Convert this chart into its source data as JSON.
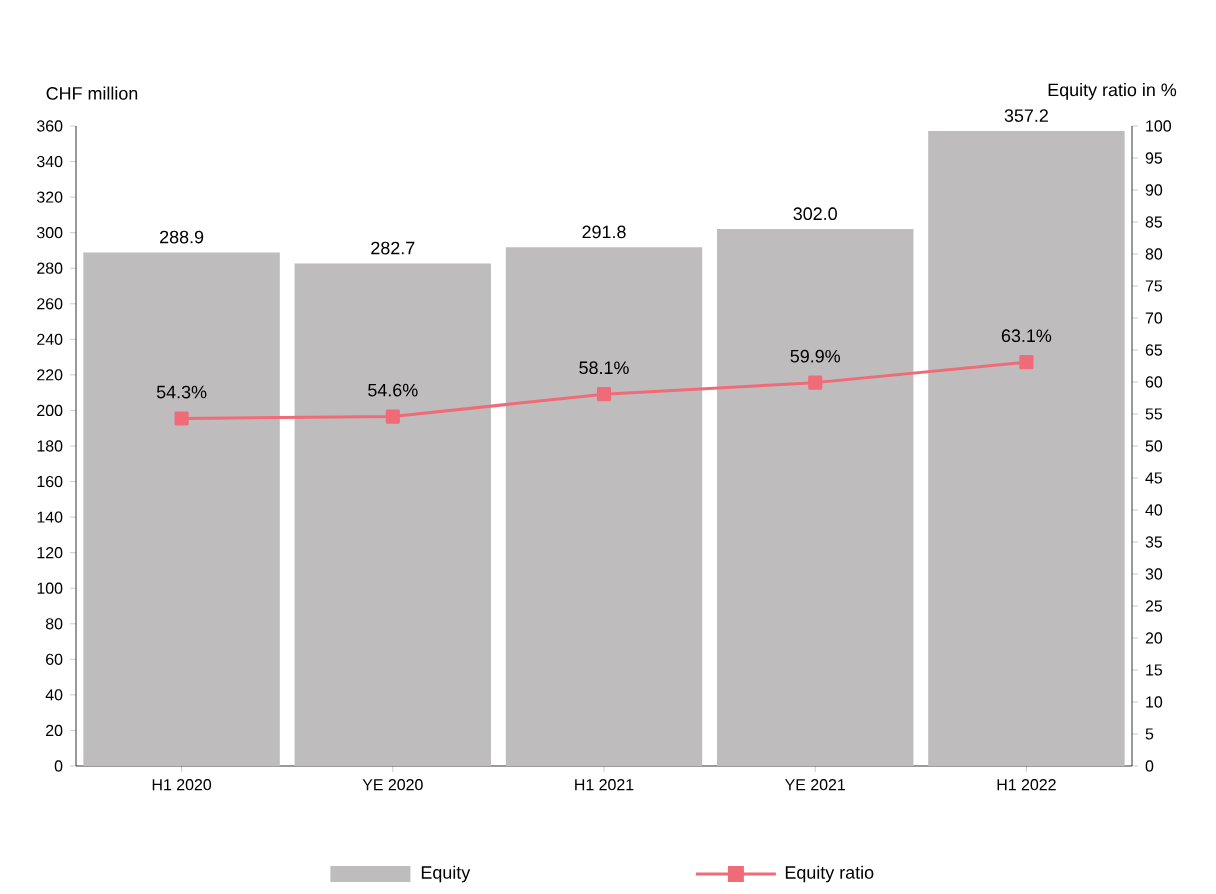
{
  "chart_data": {
    "type": "bar",
    "ylabel": "CHF million",
    "y2label": "Equity ratio in %",
    "categories": [
      "H1 2020",
      "YE 2020",
      "H1 2021",
      "YE 2021",
      "H1 2022"
    ],
    "series": [
      {
        "name": "Equity",
        "color": "#bebcbc",
        "values": [
          288.9,
          282.7,
          291.8,
          302.0,
          357.2
        ],
        "value_labels": [
          "288.9",
          "282.7",
          "291.8",
          "302.0",
          "357.2"
        ]
      },
      {
        "name": "Equity ratio",
        "type": "line",
        "axis": "y2",
        "color": "#f06b78",
        "marker": "square",
        "values": [
          54.3,
          54.6,
          58.1,
          59.9,
          63.1
        ],
        "value_labels": [
          "54.3%",
          "54.6%",
          "58.1%",
          "59.9%",
          "63.1%"
        ]
      }
    ],
    "ylim": [
      0,
      360
    ],
    "yticks": [
      0,
      20,
      40,
      60,
      80,
      100,
      120,
      140,
      160,
      180,
      200,
      220,
      240,
      260,
      280,
      300,
      320,
      340,
      360
    ],
    "y2lim": [
      0,
      100
    ],
    "y2ticks": [
      0,
      5,
      10,
      15,
      20,
      25,
      30,
      35,
      40,
      45,
      50,
      55,
      60,
      65,
      70,
      75,
      80,
      85,
      90,
      95,
      100
    ],
    "grid": false,
    "legend": "bottom"
  }
}
